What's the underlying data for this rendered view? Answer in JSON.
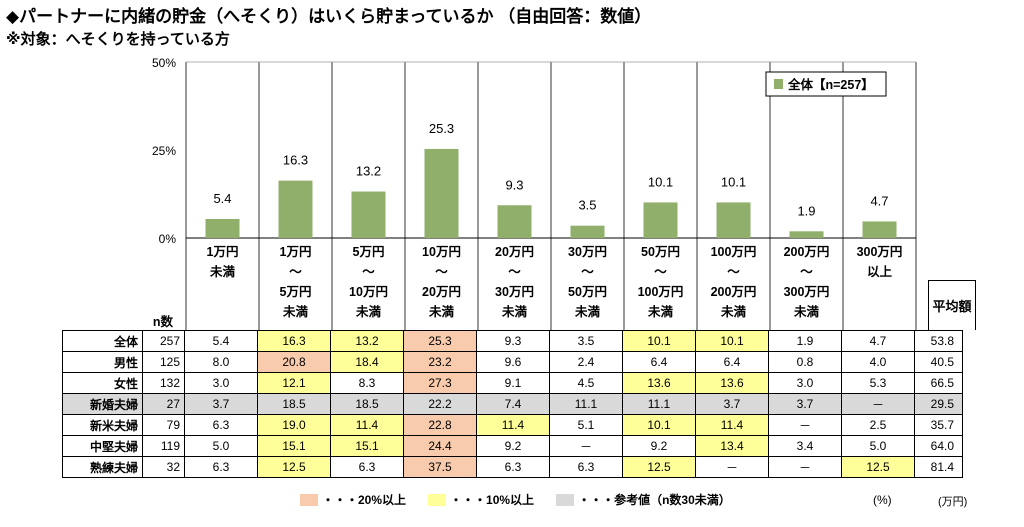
{
  "title": "◆パートナーに内緒の貯金（へそくり）はいくら貯まっているか （自由回答：数値）",
  "subtitle": "※対象：へそくりを持っている方",
  "chart_data": {
    "type": "bar",
    "categories": [
      [
        "1万円",
        "未満"
      ],
      [
        "1万円",
        "～",
        "5万円",
        "未満"
      ],
      [
        "5万円",
        "～",
        "10万円",
        "未満"
      ],
      [
        "10万円",
        "～",
        "20万円",
        "未満"
      ],
      [
        "20万円",
        "～",
        "30万円",
        "未満"
      ],
      [
        "30万円",
        "～",
        "50万円",
        "未満"
      ],
      [
        "50万円",
        "～",
        "100万円",
        "未満"
      ],
      [
        "100万円",
        "～",
        "200万円",
        "未満"
      ],
      [
        "200万円",
        "～",
        "300万円",
        "未満"
      ],
      [
        "300万円",
        "以上"
      ]
    ],
    "series": [
      {
        "name": "全体【n=257】",
        "values": [
          5.4,
          16.3,
          13.2,
          25.3,
          9.3,
          3.5,
          10.1,
          10.1,
          1.9,
          4.7
        ]
      }
    ],
    "yticks": [
      "50%",
      "25%",
      "0%"
    ],
    "ylim": [
      0,
      50
    ],
    "bar_color": "#8faf6b",
    "legend_position": "top-right"
  },
  "table": {
    "n_header": "n数",
    "avg_header": "平均額",
    "rows": [
      {
        "label": "全体",
        "n": "257",
        "values": [
          "5.4",
          "16.3",
          "13.2",
          "25.3",
          "9.3",
          "3.5",
          "10.1",
          "10.1",
          "1.9",
          "4.7"
        ],
        "avg": "53.8",
        "gray": false
      },
      {
        "label": "男性",
        "n": "125",
        "values": [
          "8.0",
          "20.8",
          "18.4",
          "23.2",
          "9.6",
          "2.4",
          "6.4",
          "6.4",
          "0.8",
          "4.0"
        ],
        "avg": "40.5",
        "gray": false
      },
      {
        "label": "女性",
        "n": "132",
        "values": [
          "3.0",
          "12.1",
          "8.3",
          "27.3",
          "9.1",
          "4.5",
          "13.6",
          "13.6",
          "3.0",
          "5.3"
        ],
        "avg": "66.5",
        "gray": false
      },
      {
        "label": "新婚夫婦",
        "n": "27",
        "values": [
          "3.7",
          "18.5",
          "18.5",
          "22.2",
          "7.4",
          "11.1",
          "11.1",
          "3.7",
          "3.7",
          "－"
        ],
        "avg": "29.5",
        "gray": true
      },
      {
        "label": "新米夫婦",
        "n": "79",
        "values": [
          "6.3",
          "19.0",
          "11.4",
          "22.8",
          "11.4",
          "5.1",
          "10.1",
          "11.4",
          "－",
          "2.5"
        ],
        "avg": "35.7",
        "gray": false
      },
      {
        "label": "中堅夫婦",
        "n": "119",
        "values": [
          "5.0",
          "15.1",
          "15.1",
          "24.4",
          "9.2",
          "－",
          "9.2",
          "13.4",
          "3.4",
          "5.0"
        ],
        "avg": "64.0",
        "gray": false
      },
      {
        "label": "熟練夫婦",
        "n": "32",
        "values": [
          "6.3",
          "12.5",
          "6.3",
          "37.5",
          "6.3",
          "6.3",
          "12.5",
          "－",
          "－",
          "12.5"
        ],
        "avg": "81.4",
        "gray": false
      }
    ],
    "highlight_20": "#f8cbad",
    "highlight_10": "#ffff99",
    "gray_color": "#d9d9d9"
  },
  "legend": {
    "items": [
      {
        "label": "・・・20%以上",
        "color": "#f8cbad"
      },
      {
        "label": "・・・10%以上",
        "color": "#ffff99"
      },
      {
        "label": "・・・参考値（n数30未満）",
        "color": "#d9d9d9"
      }
    ]
  },
  "unit_pct": "(%)",
  "unit_man": "(万円)"
}
